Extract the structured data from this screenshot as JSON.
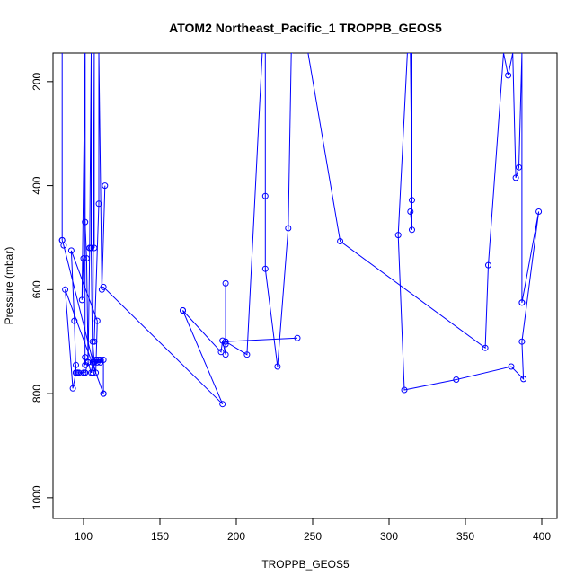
{
  "chart_data": {
    "type": "line",
    "title": "ATOM2 Northeast_Pacific_1 TROPPB_GEOS5",
    "xlabel": "TROPPB_GEOS5",
    "ylabel": "Pressure (mbar)",
    "xlim": [
      80,
      410
    ],
    "ylim": [
      1040,
      145
    ],
    "y_reversed": true,
    "grid": false,
    "x_ticks": [
      100,
      150,
      200,
      250,
      300,
      350,
      400
    ],
    "y_ticks": [
      200,
      400,
      600,
      800,
      1000
    ],
    "series_color": "#0000ff",
    "segments": [
      {
        "x": [
          86,
          86
        ],
        "y": [
          145,
          505
        ]
      },
      {
        "x": [
          86,
          87,
          108,
          109,
          92,
          94,
          95,
          95,
          96,
          96,
          96,
          97,
          101
        ],
        "y": [
          505,
          515,
          760,
          660,
          525,
          660,
          760,
          760,
          760,
          760,
          760,
          760,
          760
        ]
      },
      {
        "x": [
          101,
          103,
          103,
          105,
          106,
          106,
          107,
          108,
          109,
          109,
          110,
          111,
          111,
          113,
          113
        ],
        "y": [
          760,
          740,
          740,
          760,
          740,
          700,
          740,
          735,
          740,
          735,
          735,
          735,
          740,
          735,
          800
        ]
      },
      {
        "x": [
          113,
          88,
          93,
          95,
          95
        ],
        "y": [
          800,
          600,
          790,
          760,
          745
        ]
      },
      {
        "x": [
          101,
          101,
          102,
          103,
          104,
          104,
          105,
          105,
          106,
          107,
          107
        ],
        "y": [
          145,
          470,
          540,
          740,
          520,
          520,
          145,
          520,
          760,
          145,
          520
        ]
      },
      {
        "x": [
          107,
          110,
          110,
          112,
          114
        ],
        "y": [
          700,
          435,
          145,
          600,
          400
        ]
      },
      {
        "x": [
          100,
          99,
          101,
          101,
          101,
          100
        ],
        "y": [
          540,
          620,
          145,
          745,
          730,
          760
        ]
      },
      {
        "x": [
          113,
          191,
          165
        ],
        "y": [
          595,
          820,
          640
        ]
      },
      {
        "x": [
          165,
          190,
          191,
          193,
          193,
          193,
          193,
          240
        ],
        "y": [
          640,
          720,
          698,
          725,
          588,
          705,
          700,
          693
        ]
      },
      {
        "x": [
          193,
          207,
          217,
          219,
          219,
          219,
          227,
          234,
          236,
          237
        ],
        "y": [
          700,
          725,
          145,
          145,
          420,
          560,
          748,
          482,
          145,
          145
        ]
      },
      {
        "x": [
          247,
          268,
          363,
          365,
          375,
          378,
          381,
          383,
          385,
          387,
          387
        ],
        "y": [
          145,
          507,
          712,
          553,
          145,
          188,
          145,
          385,
          365,
          145,
          625
        ]
      },
      {
        "x": [
          387,
          398,
          387,
          388,
          380,
          344,
          310,
          306,
          312
        ],
        "y": [
          625,
          450,
          700,
          772,
          748,
          773,
          793,
          495,
          145
        ]
      },
      {
        "x": [
          312,
          314,
          315,
          315,
          315,
          314
        ],
        "y": [
          145,
          145,
          428,
          145,
          485,
          450
        ]
      }
    ]
  }
}
